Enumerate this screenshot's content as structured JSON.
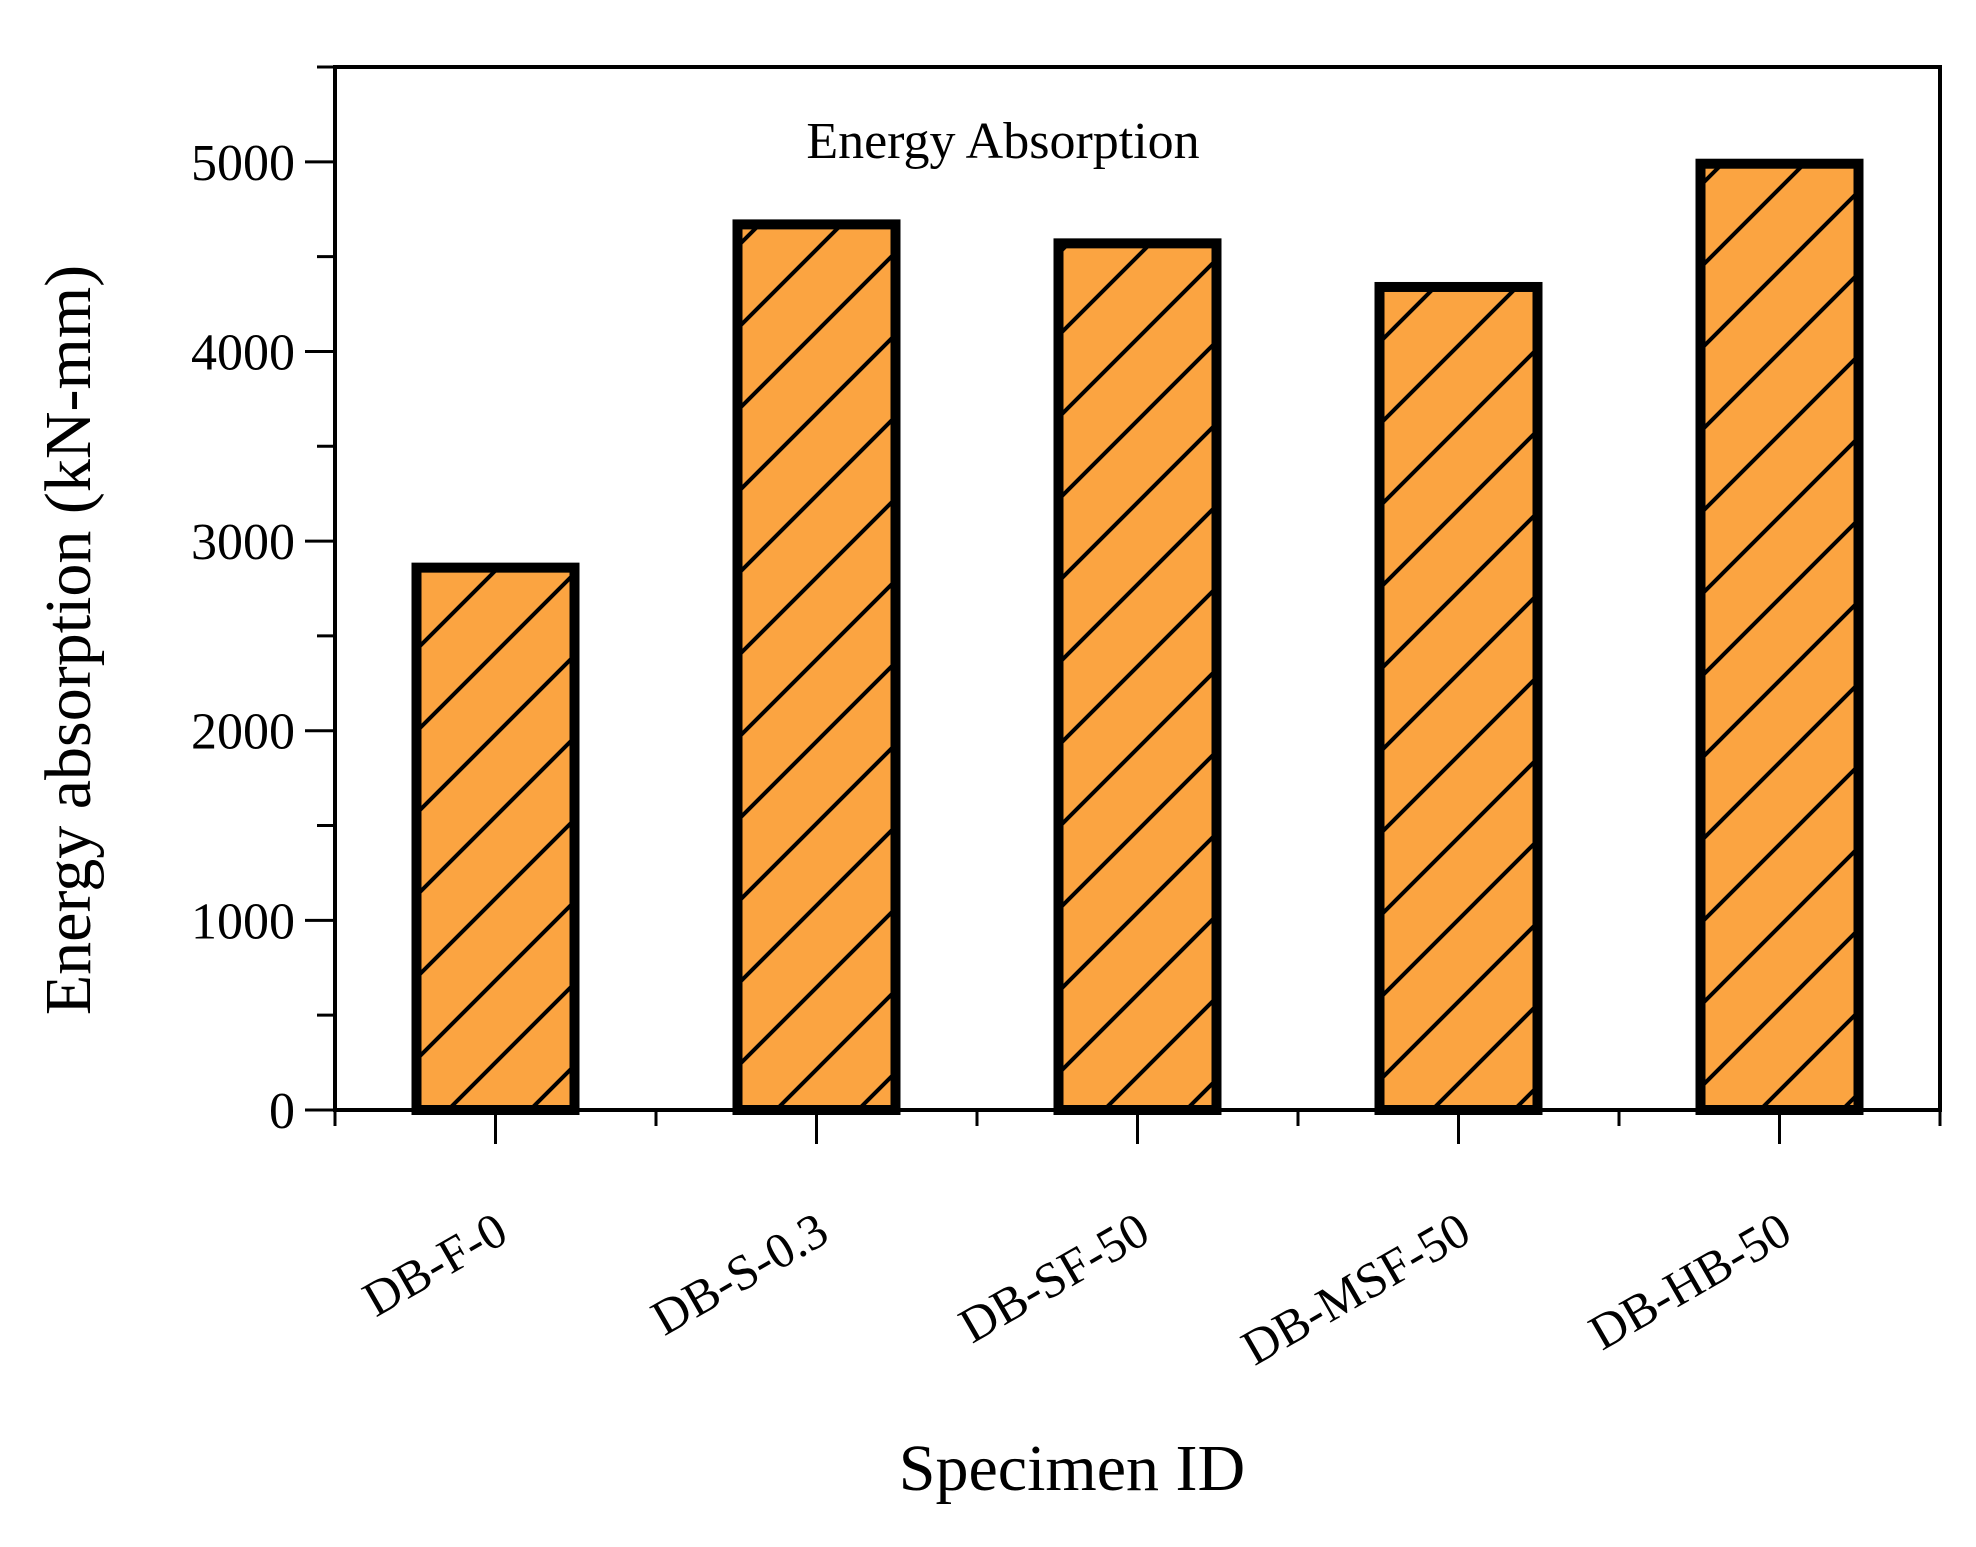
{
  "chart_data": {
    "type": "bar",
    "title": "Energy Absorption",
    "xlabel": "Specimen ID",
    "ylabel": "Energy absorption (kN-mm)",
    "categories": [
      "DB-F-0",
      "DB-S-0.3",
      "DB-SF-50",
      "DB-MSF-50",
      "DB-HB-50"
    ],
    "series": [
      {
        "name": "Energy absorption",
        "values": [
          2860,
          4670,
          4570,
          4340,
          4990
        ]
      }
    ],
    "ylim": [
      0,
      5500
    ],
    "yticks": [
      0,
      1000,
      2000,
      3000,
      4000,
      5000
    ],
    "ytick_labels": [
      "0",
      "1000",
      "2000",
      "3000",
      "4000",
      "5000"
    ],
    "grid": false,
    "bar_pattern": "diagonal-hatch",
    "colors": {
      "bar_fill": "#FBA441",
      "bar_edge": "#000000",
      "hatch": "#000000",
      "axis": "#000000",
      "background": "#ffffff"
    }
  }
}
